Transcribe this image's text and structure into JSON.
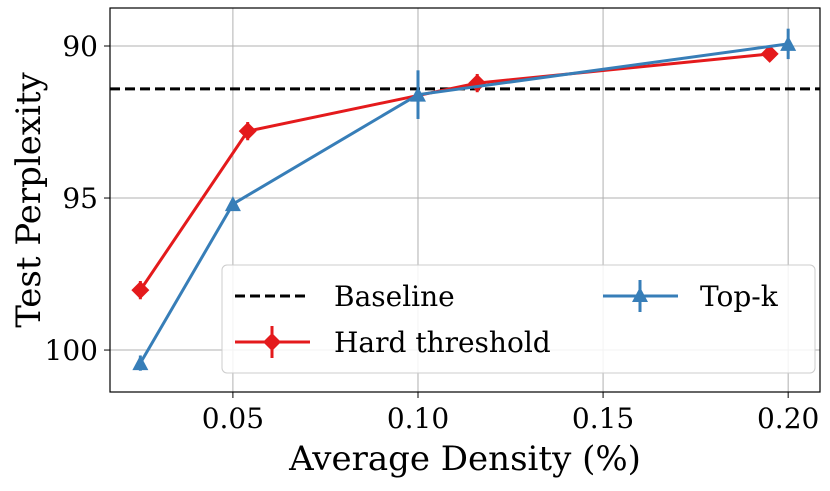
{
  "chart_data": {
    "type": "line",
    "xlabel": "Average Density (%)",
    "ylabel": "Test Perplexity",
    "xlim": [
      0.0168,
      0.2086
    ],
    "ylim": [
      101.38,
      88.75
    ],
    "y_inverted": true,
    "xticks": [
      "0.05",
      "0.10",
      "0.15",
      "0.20"
    ],
    "xtick_values": [
      0.05,
      0.1,
      0.15,
      0.2
    ],
    "yticks": [
      "90",
      "95",
      "100"
    ],
    "ytick_values": [
      90,
      95,
      100
    ],
    "grid": true,
    "legend_placement": "lower-right",
    "baseline": {
      "name": "Baseline",
      "value": 91.41,
      "color": "#000000"
    },
    "series": [
      {
        "name": "Hard threshold",
        "color": "#e41a1c",
        "marker": "diamond",
        "x": [
          0.025,
          0.054,
          0.116,
          0.195
        ],
        "y": [
          98.03,
          92.8,
          91.22,
          90.26
        ],
        "err": [
          0.3,
          0.3,
          0.3,
          0.15
        ]
      },
      {
        "name": "Top-k",
        "color": "#377eb8",
        "marker": "triangle",
        "x": [
          0.025,
          0.05,
          0.1,
          0.2
        ],
        "y": [
          100.43,
          95.2,
          91.6,
          89.93
        ],
        "err": [
          0.25,
          0.15,
          0.8,
          0.5
        ]
      }
    ]
  }
}
